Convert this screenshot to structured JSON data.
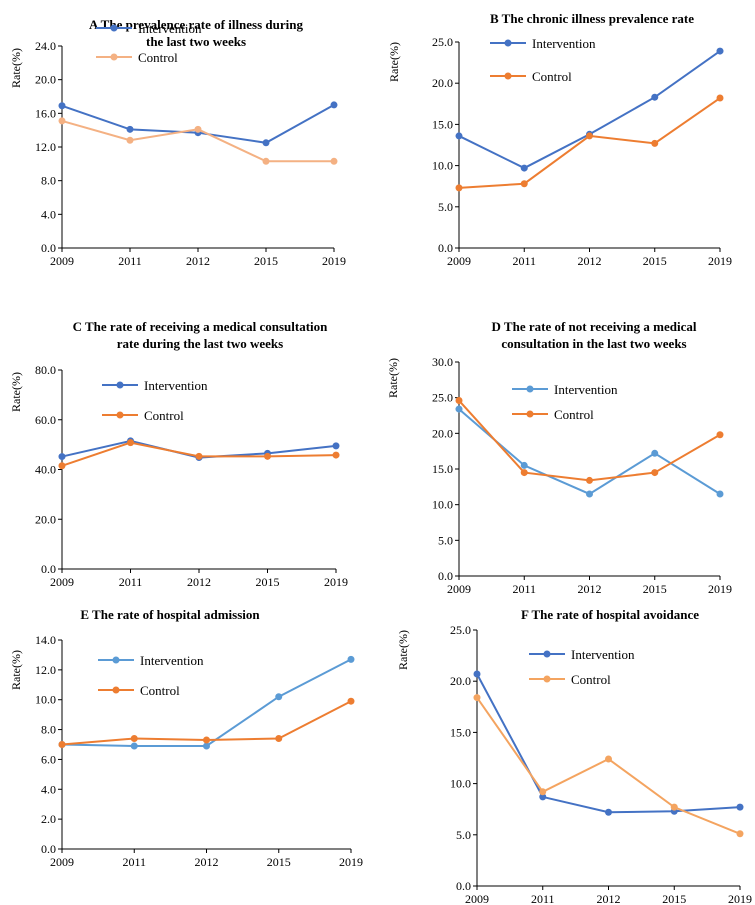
{
  "chart_data": [
    {
      "type": "line",
      "id": "A",
      "title": [
        "A  The prevalence rate of illness during",
        "the last two weeks"
      ],
      "xlabel": "",
      "ylabel": "Rate(%)",
      "categories": [
        "2009",
        "2011",
        "2012",
        "2015",
        "2019"
      ],
      "ylim": [
        0,
        24
      ],
      "yticks": [
        "0.0",
        "4.0",
        "8.0",
        "12.0",
        "16.0",
        "20.0",
        "24.0"
      ],
      "series": [
        {
          "name": "Intervention",
          "color": "#4472C4",
          "values": [
            16.9,
            14.1,
            13.7,
            12.5,
            17.0
          ]
        },
        {
          "name": "Control",
          "color": "#F4B183",
          "values": [
            15.1,
            12.8,
            14.1,
            10.3,
            10.3
          ]
        }
      ]
    },
    {
      "type": "line",
      "id": "B",
      "title": [
        "B  The chronic illness prevalence rate"
      ],
      "xlabel": "",
      "ylabel": "Rate(%)",
      "categories": [
        "2009",
        "2011",
        "2012",
        "2015",
        "2019"
      ],
      "ylim": [
        0,
        25
      ],
      "yticks": [
        "0.0",
        "5.0",
        "10.0",
        "15.0",
        "20.0",
        "25.0"
      ],
      "series": [
        {
          "name": "Intervention",
          "color": "#4472C4",
          "values": [
            13.6,
            9.7,
            13.8,
            18.3,
            23.9
          ]
        },
        {
          "name": "Control",
          "color": "#ED7D31",
          "values": [
            7.3,
            7.8,
            13.6,
            12.7,
            18.2
          ]
        }
      ]
    },
    {
      "type": "line",
      "id": "C",
      "title": [
        "C  The rate of receiving a medical consultation",
        "rate during the last two weeks"
      ],
      "xlabel": "",
      "ylabel": "Rate(%)",
      "categories": [
        "2009",
        "2011",
        "2012",
        "2015",
        "2019"
      ],
      "ylim": [
        0,
        80
      ],
      "yticks": [
        "0.0",
        "20.0",
        "40.0",
        "60.0",
        "80.0"
      ],
      "series": [
        {
          "name": "Intervention",
          "color": "#4472C4",
          "values": [
            45.2,
            51.5,
            44.8,
            46.5,
            49.5
          ]
        },
        {
          "name": "Control",
          "color": "#ED7D31",
          "values": [
            41.5,
            50.8,
            45.3,
            45.3,
            45.8
          ]
        }
      ]
    },
    {
      "type": "line",
      "id": "D",
      "title": [
        "D  The rate of not receiving a medical",
        "consultation in the last two weeks"
      ],
      "xlabel": "",
      "ylabel": "Rate(%)",
      "categories": [
        "2009",
        "2011",
        "2012",
        "2015",
        "2019"
      ],
      "ylim": [
        0,
        30
      ],
      "yticks": [
        "0.0",
        "5.0",
        "10.0",
        "15.0",
        "20.0",
        "25.0",
        "30.0"
      ],
      "series": [
        {
          "name": "Intervention",
          "color": "#5B9BD5",
          "values": [
            23.4,
            15.5,
            11.5,
            17.2,
            11.5
          ]
        },
        {
          "name": "Control",
          "color": "#ED7D31",
          "values": [
            24.6,
            14.5,
            13.4,
            14.5,
            19.8
          ]
        }
      ]
    },
    {
      "type": "line",
      "id": "E",
      "title": [
        "E  The rate of hospital admission"
      ],
      "xlabel": "",
      "ylabel": "Rate(%)",
      "categories": [
        "2009",
        "2011",
        "2012",
        "2015",
        "2019"
      ],
      "ylim": [
        0,
        14
      ],
      "yticks": [
        "0.0",
        "2.0",
        "4.0",
        "6.0",
        "8.0",
        "10.0",
        "12.0",
        "14.0"
      ],
      "series": [
        {
          "name": "Intervention",
          "color": "#5B9BD5",
          "values": [
            7.0,
            6.9,
            6.9,
            10.2,
            12.7
          ]
        },
        {
          "name": "Control",
          "color": "#ED7D31",
          "values": [
            7.0,
            7.4,
            7.3,
            7.4,
            9.9
          ]
        }
      ]
    },
    {
      "type": "line",
      "id": "F",
      "title": [
        "F  The rate of hospital avoidance"
      ],
      "xlabel": "",
      "ylabel": "Rate(%)",
      "categories": [
        "2009",
        "2011",
        "2012",
        "2015",
        "2019"
      ],
      "ylim": [
        0,
        25
      ],
      "yticks": [
        "0.0",
        "5.0",
        "10.0",
        "15.0",
        "20.0",
        "25.0"
      ],
      "series": [
        {
          "name": "Intervention",
          "color": "#4472C4",
          "values": [
            20.7,
            8.7,
            7.2,
            7.3,
            7.7
          ]
        },
        {
          "name": "Control",
          "color": "#F4A460",
          "values": [
            18.4,
            9.2,
            12.4,
            7.7,
            5.1
          ]
        }
      ]
    }
  ]
}
